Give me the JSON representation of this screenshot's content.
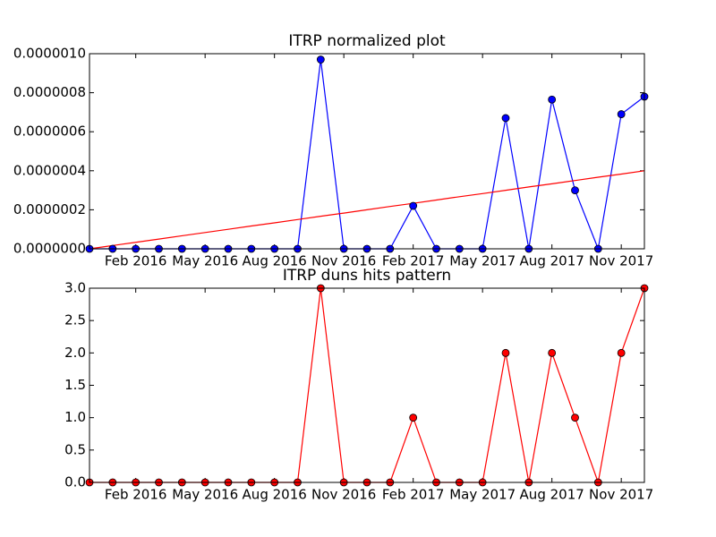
{
  "chart_data": [
    {
      "type": "line",
      "title": "ITRP normalized plot",
      "categories": [
        null,
        null,
        "Feb 2016",
        null,
        null,
        "May 2016",
        null,
        null,
        "Aug 2016",
        null,
        null,
        "Nov 2016",
        null,
        null,
        "Feb 2017",
        null,
        null,
        "May 2017",
        null,
        null,
        "Aug 2017",
        null,
        null,
        "Nov 2017",
        null
      ],
      "series": [
        {
          "color": "#0000ff",
          "marker": true,
          "values": [
            0,
            0,
            0,
            0,
            0,
            0,
            0,
            0,
            0,
            0,
            9.7e-07,
            0,
            0,
            0,
            2.2e-07,
            0,
            0,
            0,
            6.7e-07,
            0,
            7.65e-07,
            3e-07,
            0,
            6.9e-07,
            7.8e-07
          ]
        },
        {
          "color": "#ff0000",
          "marker": false,
          "values": [
            0,
            1.67e-08,
            3.33e-08,
            5e-08,
            6.67e-08,
            8.33e-08,
            1e-07,
            1.17e-07,
            1.33e-07,
            1.5e-07,
            1.67e-07,
            1.83e-07,
            2e-07,
            2.17e-07,
            2.33e-07,
            2.5e-07,
            2.67e-07,
            2.83e-07,
            3e-07,
            3.17e-07,
            3.33e-07,
            3.5e-07,
            3.67e-07,
            3.83e-07,
            4e-07
          ]
        }
      ],
      "ylim": [
        0,
        1e-06
      ],
      "yticks": [
        {
          "value": 0,
          "label": "0.0000000"
        },
        {
          "value": 2e-07,
          "label": "0.0000002"
        },
        {
          "value": 4e-07,
          "label": "0.0000004"
        },
        {
          "value": 6e-07,
          "label": "0.0000006"
        },
        {
          "value": 8e-07,
          "label": "0.0000008"
        },
        {
          "value": 1e-06,
          "label": "0.0000010"
        }
      ]
    },
    {
      "type": "line",
      "title": "ITRP duns hits pattern",
      "categories": [
        null,
        null,
        "Feb 2016",
        null,
        null,
        "May 2016",
        null,
        null,
        "Aug 2016",
        null,
        null,
        "Nov 2016",
        null,
        null,
        "Feb 2017",
        null,
        null,
        "May 2017",
        null,
        null,
        "Aug 2017",
        null,
        null,
        "Nov 2017",
        null
      ],
      "series": [
        {
          "color": "#ff0000",
          "marker": true,
          "values": [
            0,
            0,
            0,
            0,
            0,
            0,
            0,
            0,
            0,
            0,
            3,
            0,
            0,
            0,
            1,
            0,
            0,
            0,
            2,
            0,
            2,
            1,
            0,
            2,
            3
          ]
        }
      ],
      "ylim": [
        0,
        3
      ],
      "yticks": [
        {
          "value": 0,
          "label": "0.0"
        },
        0.5,
        {
          "value": 1,
          "label": "1.0"
        },
        1.5,
        {
          "value": 2,
          "label": "2.0"
        },
        2.5,
        {
          "value": 3,
          "label": "3.0"
        }
      ]
    }
  ]
}
